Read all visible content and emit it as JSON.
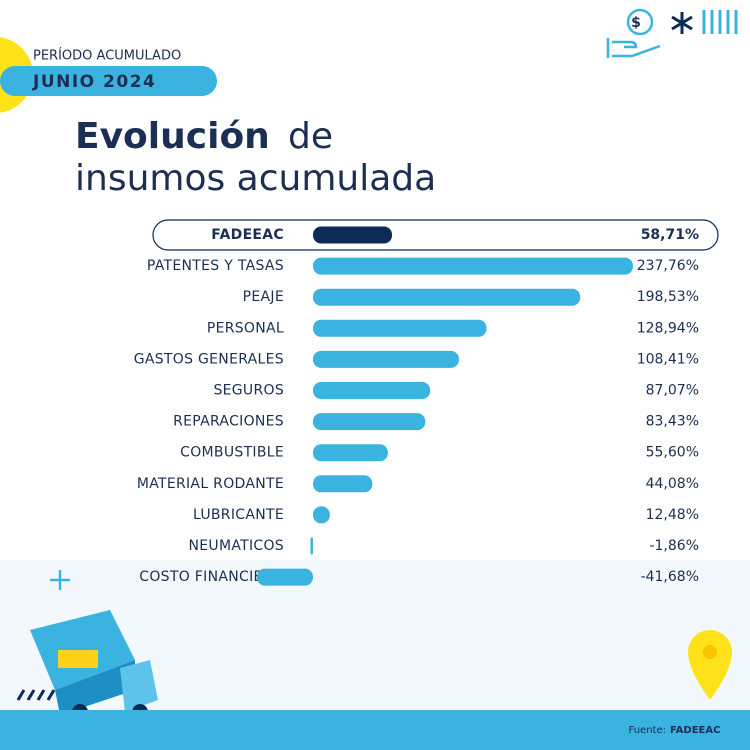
{
  "chart_data": {
    "type": "bar",
    "orientation": "horizontal",
    "period_label": "PERÍODO ACUMULADO",
    "period": "JUNIO 2024",
    "title_parts": [
      "Evolución",
      "de",
      "insumos acumulada"
    ],
    "categories": [
      "FADEEAC",
      "PATENTES Y TASAS",
      "PEAJE",
      "PERSONAL",
      "GASTOS GENERALES",
      "SEGUROS",
      "REPARACIONES",
      "COMBUSTIBLE",
      "MATERIAL RODANTE",
      "LUBRICANTE",
      "NEUMATICOS",
      "COSTO FINANCIERO"
    ],
    "values": [
      58.71,
      237.76,
      198.53,
      128.94,
      108.41,
      87.07,
      83.43,
      55.6,
      44.08,
      12.48,
      -1.86,
      -41.68
    ],
    "value_labels": [
      "58,71%",
      "237,76%",
      "198,53%",
      "128,94%",
      "108,41%",
      "87,07%",
      "83,43%",
      "55,60%",
      "44,08%",
      "12,48%",
      "-1,86%",
      "-41,68%"
    ],
    "color": "#3bb3e0",
    "highlight_color": "#0c2b57",
    "highlight_index": 0,
    "source_label": "Fuente:",
    "source": "FADEEAC"
  }
}
